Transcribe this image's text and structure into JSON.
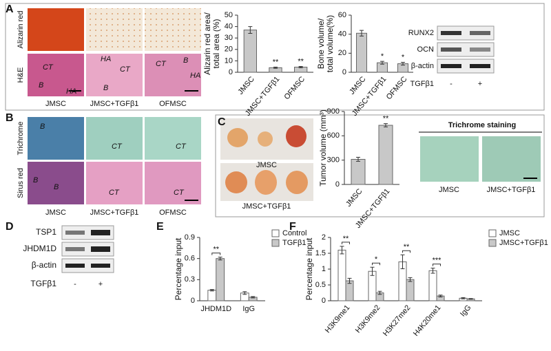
{
  "chart_data": [
    {
      "type": "bar",
      "ylabel": [
        "Alizarin red area/",
        "total area (%)"
      ],
      "categories": [
        "JMSC",
        "JMSC+TGFβ1",
        "OFMSC"
      ],
      "values": [
        37,
        4,
        4.5
      ],
      "errors": [
        3,
        0.5,
        0.6
      ],
      "color": "#c8c8c8",
      "significance": [
        null,
        "**",
        "**"
      ],
      "ylim": [
        0,
        50
      ],
      "yticks": [
        0,
        10,
        20,
        30,
        40,
        50
      ]
    },
    {
      "type": "bar",
      "ylabel": [
        "Bone volume/",
        "total volume(%)"
      ],
      "categories": [
        "JMSC",
        "JMSC+TGFβ1",
        "OFMSC"
      ],
      "values": [
        41,
        10,
        9
      ],
      "errors": [
        3,
        1.5,
        1.5
      ],
      "color": "#c8c8c8",
      "significance": [
        null,
        "*",
        "*"
      ],
      "ylim": [
        0,
        60
      ],
      "yticks": [
        0,
        20,
        40,
        60
      ]
    },
    {
      "type": "bar",
      "ylabel": [
        "Tumor volume (mm³)"
      ],
      "categories": [
        "JMSC",
        "JMSC+TGFβ1"
      ],
      "values": [
        310,
        730
      ],
      "errors": [
        25,
        20
      ],
      "color": "#c8c8c8",
      "significance": [
        null,
        "**"
      ],
      "ylim": [
        0,
        900
      ],
      "yticks": [
        0,
        300,
        600,
        900
      ]
    },
    {
      "type": "bar",
      "ylabel": [
        "Percentage input"
      ],
      "categories": [
        "JHDM1D",
        "IgG"
      ],
      "series": [
        {
          "name": "Control",
          "color": "#ffffff",
          "values": [
            0.15,
            0.11
          ],
          "errors": [
            0.01,
            0.02
          ]
        },
        {
          "name": "TGFβ1",
          "color": "#c8c8c8",
          "values": [
            0.6,
            0.05
          ],
          "errors": [
            0.02,
            0.01
          ]
        }
      ],
      "significance": [
        "**",
        null
      ],
      "legend": "right",
      "ylim": [
        0,
        0.9
      ],
      "yticks": [
        0,
        0.3,
        0.6,
        0.9
      ]
    },
    {
      "type": "bar",
      "ylabel": [
        "Percentage input"
      ],
      "categories": [
        "H3K9me1",
        "H3K9me2",
        "H3K27me2",
        "H4K20me1",
        "IgG"
      ],
      "series": [
        {
          "name": "JMSC",
          "color": "#ffffff",
          "values": [
            1.6,
            0.93,
            1.23,
            0.95,
            0.08
          ],
          "errors": [
            0.12,
            0.13,
            0.22,
            0.08,
            0.02
          ]
        },
        {
          "name": "JMSC+TGFβ1",
          "color": "#c8c8c8",
          "values": [
            0.63,
            0.25,
            0.67,
            0.15,
            0.06
          ],
          "errors": [
            0.08,
            0.05,
            0.06,
            0.03,
            0.01
          ]
        }
      ],
      "significance": [
        "**",
        "*",
        "**",
        "***",
        null
      ],
      "legend": "right",
      "ylim": [
        0,
        2
      ],
      "yticks": [
        0,
        0.5,
        1,
        1.5,
        2
      ]
    }
  ],
  "figure": {
    "panel_labels": [
      "A",
      "B",
      "C",
      "D",
      "E",
      "F"
    ],
    "a_rows": [
      "Alizarin red",
      "H&E"
    ],
    "a_columns": [
      "JMSC",
      "JMSC+TGFβ1",
      "OFMSC"
    ],
    "a_image_text": [
      "CT",
      "B",
      "HA",
      "HA",
      "CT",
      "B",
      "CT",
      "B",
      "HA"
    ],
    "b_rows": [
      "Trichrome",
      "Sirus red"
    ],
    "b_columns": [
      "JMSC",
      "JMSC+TGFβ1",
      "OFMSC"
    ],
    "b_image_text": [
      "B",
      "CT",
      "CT",
      "B",
      "B",
      "CT",
      "CT"
    ],
    "c_photos": [
      "JMSC",
      "JMSC+TGFβ1"
    ],
    "c_stain_title": "Trichrome staining",
    "c_stain_columns": [
      "JMSC",
      "JMSC+TGFβ1"
    ],
    "blots": [
      {
        "rows": [
          "RUNX2",
          "OCN",
          "β-actin"
        ],
        "treatment": "TGFβ1",
        "lanes": [
          "-",
          "+"
        ]
      },
      {
        "rows": [
          "TSP1",
          "JHDM1D",
          "β-actin"
        ],
        "treatment": "TGFβ1",
        "lanes": [
          "-",
          "+"
        ]
      }
    ]
  }
}
